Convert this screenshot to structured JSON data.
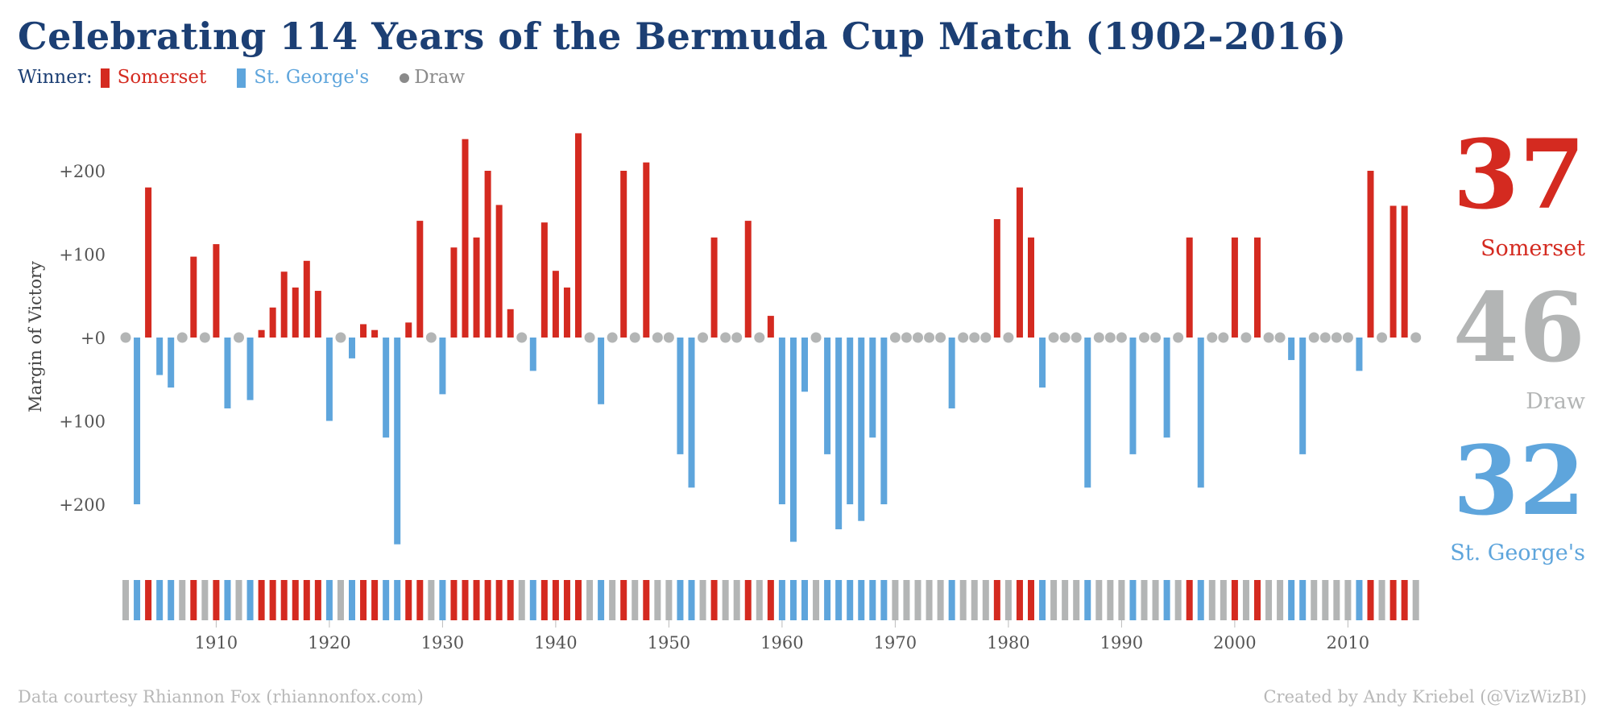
{
  "title": "Celebrating 114 Years of the Bermuda Cup Match (1902-2016)",
  "legend": {
    "prefix": "Winner:",
    "items": [
      {
        "label": "Somerset",
        "color": "#d42a20",
        "shape": "bar"
      },
      {
        "label": "St. George's",
        "color": "#5ea5dc",
        "shape": "bar"
      },
      {
        "label": "Draw",
        "color": "#8a8a8a",
        "shape": "dot"
      }
    ]
  },
  "totals": [
    {
      "count": "37",
      "label": "Somerset",
      "color": "#d42a20"
    },
    {
      "count": "46",
      "label": "Draw",
      "color": "#b3b5b5"
    },
    {
      "count": "32",
      "label": "St. George's",
      "color": "#5ea5dc"
    }
  ],
  "footer": {
    "left": "Data courtesy Rhiannon Fox (rhiannonfox.com)",
    "right": "Created by Andy Kriebel (@VizWizBI)"
  },
  "colors": {
    "somerset": "#d42a20",
    "stgeorges": "#5ea5dc",
    "draw": "#b3b5b5",
    "axis_text": "#555555"
  },
  "chart_data": {
    "type": "bar",
    "title": "Celebrating 114 Years of the Bermuda Cup Match (1902-2016)",
    "ylabel": "Margin of Victory",
    "ylim": [
      -250,
      250
    ],
    "y_ticks": [
      {
        "value": 200,
        "label": "+200"
      },
      {
        "value": 100,
        "label": "+100"
      },
      {
        "value": 0,
        "label": "+0"
      },
      {
        "value": -100,
        "label": "+100"
      },
      {
        "value": -200,
        "label": "+200"
      }
    ],
    "x_ticks": [
      1910,
      1920,
      1930,
      1940,
      1950,
      1960,
      1970,
      1980,
      1990,
      2000,
      2010
    ],
    "x_range": [
      1902,
      2016
    ],
    "series_note": "positive = Somerset margin, negative = St. George's margin, 0 = draw",
    "winner_codes": {
      "S": "Somerset",
      "G": "St. George's",
      "D": "Draw"
    },
    "years": [
      1902,
      1903,
      1904,
      1905,
      1906,
      1907,
      1908,
      1909,
      1910,
      1911,
      1912,
      1913,
      1914,
      1915,
      1916,
      1917,
      1918,
      1919,
      1920,
      1921,
      1922,
      1923,
      1924,
      1925,
      1926,
      1927,
      1928,
      1929,
      1930,
      1931,
      1932,
      1933,
      1934,
      1935,
      1936,
      1937,
      1938,
      1939,
      1940,
      1941,
      1942,
      1943,
      1944,
      1945,
      1946,
      1947,
      1948,
      1949,
      1950,
      1951,
      1952,
      1953,
      1954,
      1955,
      1956,
      1957,
      1958,
      1959,
      1960,
      1961,
      1962,
      1963,
      1964,
      1965,
      1966,
      1967,
      1968,
      1969,
      1970,
      1971,
      1972,
      1973,
      1974,
      1975,
      1976,
      1977,
      1978,
      1979,
      1980,
      1981,
      1982,
      1983,
      1984,
      1985,
      1986,
      1987,
      1988,
      1989,
      1990,
      1991,
      1992,
      1993,
      1994,
      1995,
      1996,
      1997,
      1998,
      1999,
      2000,
      2001,
      2002,
      2003,
      2004,
      2005,
      2006,
      2007,
      2008,
      2009,
      2010,
      2011,
      2012,
      2013,
      2014,
      2015,
      2016
    ],
    "margins": [
      0,
      -200,
      180,
      -45,
      -60,
      0,
      97,
      0,
      112,
      -85,
      0,
      -75,
      9,
      36,
      79,
      60,
      92,
      56,
      -100,
      0,
      -25,
      16,
      9,
      -120,
      -248,
      18,
      140,
      0,
      -68,
      108,
      238,
      120,
      200,
      159,
      34,
      0,
      -40,
      138,
      80,
      60,
      245,
      0,
      -80,
      0,
      200,
      0,
      210,
      0,
      0,
      -140,
      -180,
      0,
      120,
      0,
      0,
      140,
      0,
      26,
      -200,
      -245,
      -65,
      0,
      -140,
      -230,
      -200,
      -220,
      -120,
      -200,
      0,
      0,
      0,
      0,
      0,
      -85,
      0,
      0,
      0,
      142,
      0,
      180,
      120,
      -60,
      0,
      0,
      0,
      -180,
      0,
      0,
      0,
      -140,
      0,
      0,
      -120,
      0,
      120,
      -180,
      0,
      0,
      120,
      0,
      120,
      0,
      0,
      -27,
      -140,
      0,
      0,
      0,
      0,
      -40,
      200,
      0,
      158,
      158,
      0
    ],
    "winners": [
      "D",
      "G",
      "S",
      "G",
      "G",
      "D",
      "S",
      "D",
      "S",
      "G",
      "D",
      "G",
      "S",
      "S",
      "S",
      "S",
      "S",
      "S",
      "G",
      "D",
      "G",
      "S",
      "S",
      "G",
      "G",
      "S",
      "S",
      "D",
      "G",
      "S",
      "S",
      "S",
      "S",
      "S",
      "S",
      "D",
      "G",
      "S",
      "S",
      "S",
      "S",
      "D",
      "G",
      "D",
      "S",
      "D",
      "S",
      "D",
      "D",
      "G",
      "G",
      "D",
      "S",
      "D",
      "D",
      "S",
      "D",
      "S",
      "G",
      "G",
      "G",
      "D",
      "G",
      "G",
      "G",
      "G",
      "G",
      "G",
      "D",
      "D",
      "D",
      "D",
      "D",
      "G",
      "D",
      "D",
      "D",
      "S",
      "D",
      "S",
      "S",
      "G",
      "D",
      "D",
      "D",
      "G",
      "D",
      "D",
      "D",
      "G",
      "D",
      "D",
      "G",
      "D",
      "S",
      "G",
      "D",
      "D",
      "S",
      "D",
      "S",
      "D",
      "D",
      "G",
      "G",
      "D",
      "D",
      "D",
      "D",
      "G",
      "S",
      "D",
      "S",
      "S",
      "D"
    ]
  }
}
